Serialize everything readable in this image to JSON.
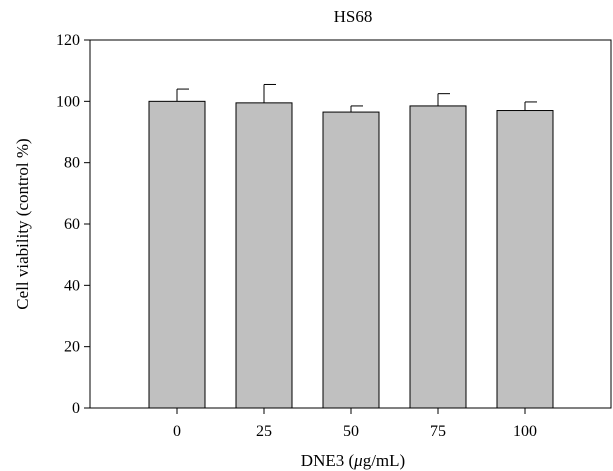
{
  "chart_data": {
    "type": "bar",
    "title": "HS68",
    "xlabel_prefix": "DNE3 (",
    "xlabel_unit_greek": "μ",
    "xlabel_suffix": "g/mL)",
    "ylabel": "Cell viability (control %)",
    "categories": [
      "0",
      "25",
      "50",
      "75",
      "100"
    ],
    "values": [
      100,
      99.5,
      96.5,
      98.5,
      97
    ],
    "errors": [
      4,
      6,
      2,
      4,
      2.8
    ],
    "ylim": [
      0,
      120
    ],
    "yticks": [
      0,
      20,
      40,
      60,
      80,
      100,
      120
    ],
    "ytick_labels": [
      "0",
      "20",
      "40",
      "60",
      "80",
      "100",
      "120"
    ],
    "grid": false,
    "legend": "none",
    "bar_color": "#c0c0c0",
    "edge_color": "#000000"
  }
}
